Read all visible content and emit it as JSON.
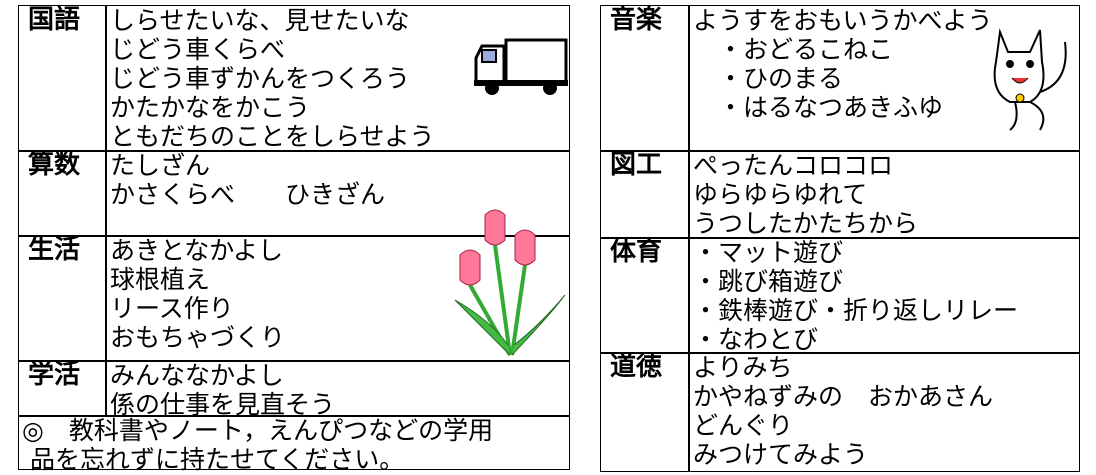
{
  "left_table": {
    "rows": [
      {
        "subject": "国語",
        "lines": [
          "しらせたいな、見せたいな",
          "じどう車くらべ",
          "じどう車ずかんをつくろう",
          "かたかなをかこう",
          "ともだちのことをしらせよう"
        ]
      },
      {
        "subject": "算数",
        "lines": [
          "たしざん",
          "かさくらべ　　ひきざん"
        ]
      },
      {
        "subject": "生活",
        "lines": [
          "あきとなかよし",
          "球根植え",
          "リース作り",
          "おもちゃづくり"
        ]
      },
      {
        "subject": "学活",
        "lines": [
          "みんななかよし",
          "係の仕事を見直そう"
        ]
      }
    ],
    "note": [
      "◎　教科書やノート，えんぴつなどの学用",
      "品を忘れずに持たせてください。"
    ]
  },
  "right_table": {
    "rows": [
      {
        "subject": "音楽",
        "lines": [
          "ようすをおもいうかべよう",
          "　・おどるこねこ",
          "　・ひのまる",
          "　・はるなつあきふゆ"
        ]
      },
      {
        "subject": "図工",
        "lines": [
          "ぺったんコロコロ",
          "ゆらゆらゆれて",
          "うつしたかたちから"
        ]
      },
      {
        "subject": "体育",
        "lines": [
          "・マット遊び",
          "・跳び箱遊び",
          "・鉄棒遊び・折り返しリレー",
          "・なわとび"
        ]
      },
      {
        "subject": "道徳",
        "lines": [
          "よりみち",
          "かやねずみの　おかあさん",
          "どんぐり",
          "みつけてみよう"
        ]
      }
    ]
  }
}
